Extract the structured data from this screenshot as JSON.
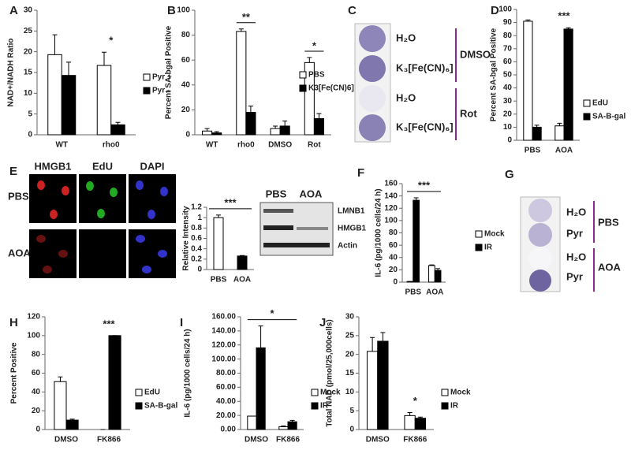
{
  "chart_data": [
    {
      "type": "bar",
      "panel": "A",
      "ylabel": "NAD+/NADH Ratio",
      "categories": [
        "WT",
        "rho0"
      ],
      "series": [
        {
          "name": "Pyr +",
          "color": "#ffffff",
          "values": [
            19.3,
            16.7
          ],
          "errors": [
            4.8,
            3.2
          ]
        },
        {
          "name": "Pyr -",
          "color": "#000000",
          "values": [
            14.3,
            2.4
          ],
          "errors": [
            3.2,
            0.6
          ]
        }
      ],
      "ylim": [
        0,
        30
      ],
      "yticks": [
        0,
        5,
        10,
        15,
        20,
        25,
        30
      ],
      "significance": [
        null,
        "*"
      ]
    },
    {
      "type": "bar",
      "panel": "B",
      "ylabel": "Percent SA-bgal Positive",
      "categories": [
        "WT",
        "rho0",
        "DMSO",
        "Rot"
      ],
      "series": [
        {
          "name": "PBS",
          "color": "#ffffff",
          "values": [
            3,
            83,
            5,
            58
          ],
          "errors": [
            2,
            2,
            2,
            4
          ]
        },
        {
          "name": "K3[Fe(CN)6]",
          "color": "#000000",
          "values": [
            1.5,
            18,
            7,
            13
          ],
          "errors": [
            1,
            5,
            4,
            4
          ]
        }
      ],
      "ylim": [
        0,
        100
      ],
      "yticks": [
        0,
        20,
        40,
        60,
        80,
        100
      ],
      "significance": [
        null,
        "**",
        null,
        "*"
      ],
      "significance_bracket": true
    },
    {
      "type": "bar",
      "panel": "D",
      "ylabel": "Percent SA-bgal Positive",
      "categories": [
        "PBS",
        "AOA"
      ],
      "series": [
        {
          "name": "EdU",
          "color": "#ffffff",
          "values": [
            91,
            11
          ],
          "errors": [
            1,
            2
          ]
        },
        {
          "name": "SA-B-gal",
          "color": "#000000",
          "values": [
            10,
            85
          ],
          "errors": [
            1.5,
            1
          ]
        }
      ],
      "ylim": [
        0,
        100
      ],
      "yticks": [
        0,
        10,
        20,
        30,
        40,
        50,
        60,
        70,
        80,
        90,
        100
      ],
      "significance": [
        null,
        "***"
      ]
    },
    {
      "type": "bar",
      "ylabel": "Relative Intensity",
      "categories": [
        "PBS",
        "AOA"
      ],
      "values": [
        1,
        0.26
      ],
      "errors": [
        0.05,
        0.01
      ],
      "colors": [
        "#ffffff",
        "#000000"
      ],
      "ylim": [
        0,
        1.2
      ],
      "yticks": [
        0,
        0.2,
        0.4,
        0.6,
        0.8,
        1,
        1.2
      ],
      "significance_span": "***"
    },
    {
      "type": "bar",
      "panel": "F",
      "ylabel": "IL-6 (pg/1000 cells/24 h)",
      "categories": [
        "PBS",
        "AOA"
      ],
      "series": [
        {
          "name": "Mock",
          "color": "#ffffff",
          "values": [
            1,
            27
          ],
          "errors": [
            0,
            1
          ]
        },
        {
          "name": "IR",
          "color": "#000000",
          "values": [
            133,
            19
          ],
          "errors": [
            4,
            3
          ]
        }
      ],
      "ylim": [
        0,
        160
      ],
      "yticks": [
        0,
        20,
        40,
        60,
        80,
        100,
        120,
        140,
        160
      ],
      "significance_span": "***"
    },
    {
      "type": "bar",
      "panel": "H",
      "ylabel": "Percent Positive",
      "categories": [
        "DMSO",
        "FK866"
      ],
      "series": [
        {
          "name": "EdU",
          "color": "#ffffff",
          "values": [
            51,
            0
          ],
          "errors": [
            5,
            0
          ]
        },
        {
          "name": "SA-B-gal",
          "color": "#000000",
          "values": [
            10,
            100
          ],
          "errors": [
            1,
            0
          ]
        }
      ],
      "ylim": [
        0,
        120
      ],
      "yticks": [
        0,
        20,
        40,
        60,
        80,
        100,
        120
      ],
      "significance": [
        null,
        "***"
      ]
    },
    {
      "type": "bar",
      "panel": "I",
      "ylabel": "IL-6 (pg/1000 cells/24 h)",
      "categories": [
        "DMSO",
        "FK866"
      ],
      "series": [
        {
          "name": "Mock",
          "color": "#ffffff",
          "values": [
            19,
            4
          ],
          "errors": [
            0,
            1
          ]
        },
        {
          "name": "IR",
          "color": "#000000",
          "values": [
            116,
            11
          ],
          "errors": [
            31,
            2
          ]
        }
      ],
      "ylim": [
        0,
        160
      ],
      "yticks": [
        {
          "value": 0,
          "label": "0.00"
        },
        {
          "value": 20,
          "label": "20.00"
        },
        {
          "value": 40,
          "label": "40.00"
        },
        {
          "value": 60,
          "label": "60.00"
        },
        {
          "value": 80,
          "label": "80.00"
        },
        {
          "value": 100,
          "label": "100.00"
        },
        {
          "value": 120,
          "label": "120.00"
        },
        {
          "value": 140,
          "label": "140.00"
        },
        {
          "value": 160,
          "label": "160.00"
        }
      ],
      "significance_span": "*"
    },
    {
      "type": "bar",
      "panel": "J",
      "ylabel": "Total NAD (pmol/25,000cells)",
      "categories": [
        "DMSO",
        "FK866"
      ],
      "series": [
        {
          "name": "Mock",
          "color": "#ffffff",
          "values": [
            20.8,
            3.7
          ],
          "errors": [
            3.7,
            0.8
          ]
        },
        {
          "name": "IR",
          "color": "#000000",
          "values": [
            23.5,
            3.0
          ],
          "errors": [
            2.3,
            0.3
          ]
        }
      ],
      "ylim": [
        0,
        30
      ],
      "yticks": [
        0,
        5,
        10,
        15,
        20,
        25,
        30
      ],
      "significance": [
        null,
        "*"
      ]
    }
  ],
  "panels": {
    "C": {
      "label": "C",
      "rows": [
        "H₂O",
        "K₃[Fe(CN)₆]",
        "H₂O",
        "K₃[Fe(CN)₆]"
      ],
      "groups": [
        "DMSO",
        "Rot"
      ]
    },
    "E": {
      "label": "E",
      "columns": [
        "HMGB1",
        "EdU",
        "DAPI"
      ],
      "rows": [
        "PBS",
        "AOA"
      ],
      "blot_columns": [
        "PBS",
        "AOA"
      ],
      "blot_rows": [
        "LMNB1",
        "HMGB1",
        "Actin"
      ]
    },
    "G": {
      "label": "G",
      "rows": [
        "H₂O",
        "Pyr",
        "H₂O",
        "Pyr"
      ],
      "groups": [
        "PBS",
        "AOA"
      ]
    }
  }
}
